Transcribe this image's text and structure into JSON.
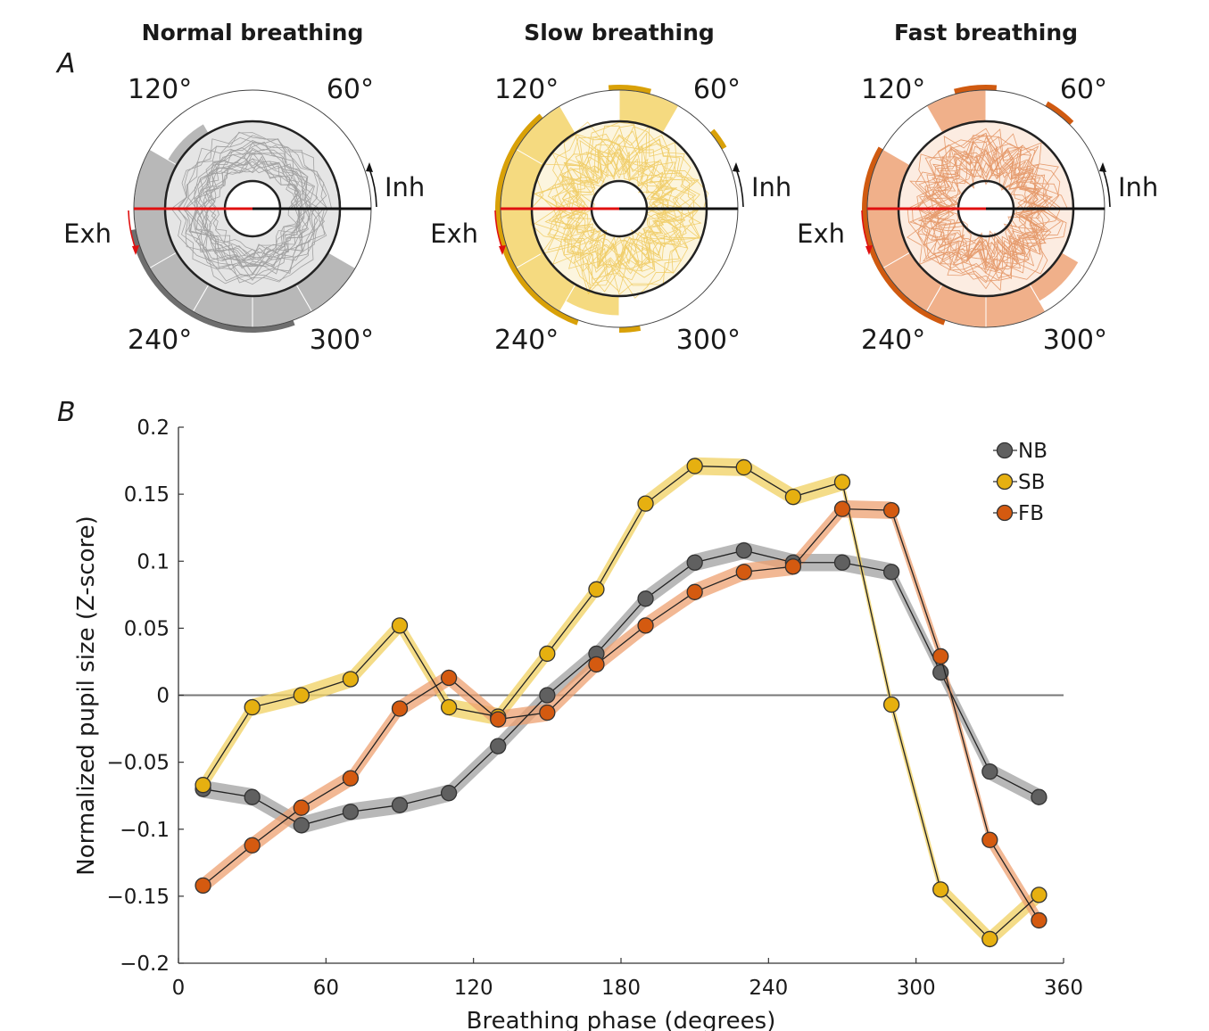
{
  "panel_a": {
    "letter": "A",
    "inh_label": "Inh",
    "exh_label": "Exh",
    "angle_labels": [
      "120°",
      "60°",
      "240°",
      "300°"
    ],
    "plots": [
      {
        "title": "Normal breathing",
        "color": "#6a6a6a",
        "light": "#b8b8b8",
        "dark": "#6e6e6e"
      },
      {
        "title": "Slow breathing",
        "color": "#e8b010",
        "light": "#f5da80",
        "dark": "#d9a108"
      },
      {
        "title": "Fast breathing",
        "color": "#d45a10",
        "light": "#f0b08a",
        "dark": "#d05a10"
      }
    ]
  },
  "chart_data": {
    "type": "line",
    "panel_letter": "B",
    "title": "",
    "xlabel": "Breathing phase (degrees)",
    "ylabel": "Normalized pupil size (Z-score)",
    "xlim": [
      0,
      360
    ],
    "ylim": [
      -0.2,
      0.2
    ],
    "xticks": [
      0,
      60,
      120,
      180,
      240,
      300,
      360
    ],
    "yticks": [
      0.2,
      0.15,
      0.1,
      0.05,
      0,
      -0.05,
      -0.1,
      -0.15,
      -0.2
    ],
    "ytick_labels": [
      "0.2",
      "0.15",
      "0.1",
      "0.05",
      "0",
      "−0.05",
      "−0.1",
      "−0.15",
      "−0.2"
    ],
    "x": [
      10,
      30,
      50,
      70,
      90,
      110,
      130,
      150,
      170,
      190,
      210,
      230,
      250,
      270,
      290,
      310,
      330,
      350
    ],
    "series": [
      {
        "name": "NB",
        "color": "#606060",
        "band": "#a0a0a0",
        "values": [
          -0.07,
          -0.076,
          -0.097,
          -0.087,
          -0.082,
          -0.073,
          -0.038,
          0.0,
          0.031,
          0.072,
          0.099,
          0.108,
          0.099,
          0.099,
          0.092,
          0.017,
          -0.057,
          -0.076
        ]
      },
      {
        "name": "SB",
        "color": "#e6b010",
        "band": "#f0d060",
        "values": [
          -0.067,
          -0.009,
          0.0,
          0.012,
          0.052,
          -0.009,
          -0.016,
          0.031,
          0.079,
          0.143,
          0.171,
          0.17,
          0.148,
          0.159,
          -0.007,
          -0.145,
          -0.182,
          -0.149
        ]
      },
      {
        "name": "FB",
        "color": "#d45a10",
        "band": "#eea070",
        "values": [
          -0.142,
          -0.112,
          -0.084,
          -0.062,
          -0.01,
          0.013,
          -0.018,
          -0.013,
          0.023,
          0.052,
          0.077,
          0.092,
          0.096,
          0.139,
          0.138,
          0.029,
          -0.108,
          -0.168
        ]
      }
    ],
    "legend": {
      "position": "top-right",
      "entries": [
        "NB",
        "SB",
        "FB"
      ]
    }
  }
}
